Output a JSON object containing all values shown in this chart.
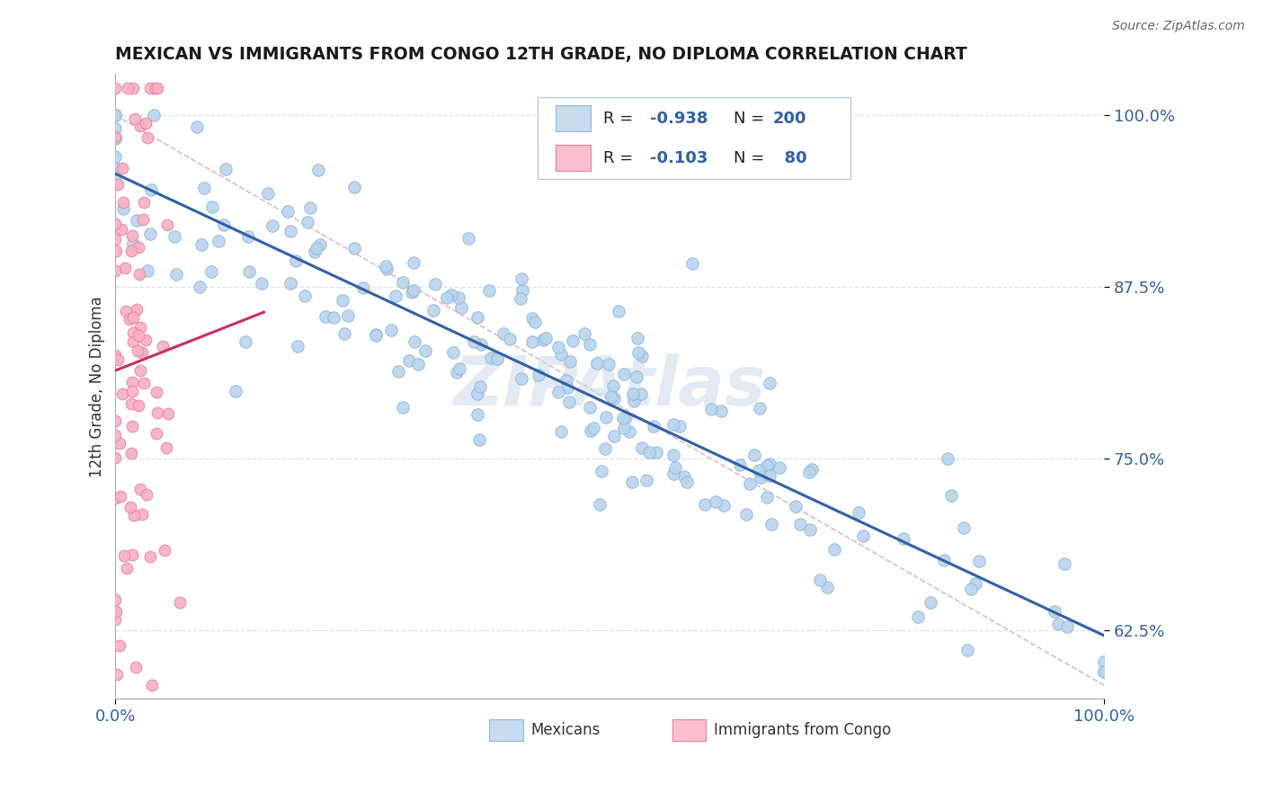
{
  "title": "MEXICAN VS IMMIGRANTS FROM CONGO 12TH GRADE, NO DIPLOMA CORRELATION CHART",
  "source": "Source: ZipAtlas.com",
  "xlabel_mexican": "Mexicans",
  "xlabel_congo": "Immigrants from Congo",
  "ylabel": "12th Grade, No Diploma",
  "blue_R": -0.938,
  "blue_N": 200,
  "pink_R": -0.103,
  "pink_N": 80,
  "blue_color": "#b8d4ee",
  "blue_edge": "#90b8d8",
  "pink_color": "#f8b0c0",
  "pink_edge": "#e880a0",
  "blue_line_color": "#3060a8",
  "pink_line_color": "#c83060",
  "ref_line_color": "#e8b8c8",
  "ref_line_style": "--",
  "legend_box_blue": "#c8dcf0",
  "legend_box_pink": "#fcc0cc",
  "title_color": "#1a1a1a",
  "stat_label_color": "#222222",
  "stat_value_color": "#3060a8",
  "n_value_color": "#3060a8",
  "xmin": 0.0,
  "xmax": 1.0,
  "ymin": 0.575,
  "ymax": 1.03,
  "yticks": [
    0.625,
    0.75,
    0.875,
    1.0
  ],
  "ytick_labels": [
    "62.5%",
    "75.0%",
    "87.5%",
    "100.0%"
  ],
  "xtick_labels": [
    "0.0%",
    "100.0%"
  ],
  "grid_color": "#d8e4f0",
  "watermark": "ZIPAtlas",
  "background_color": "#ffffff"
}
